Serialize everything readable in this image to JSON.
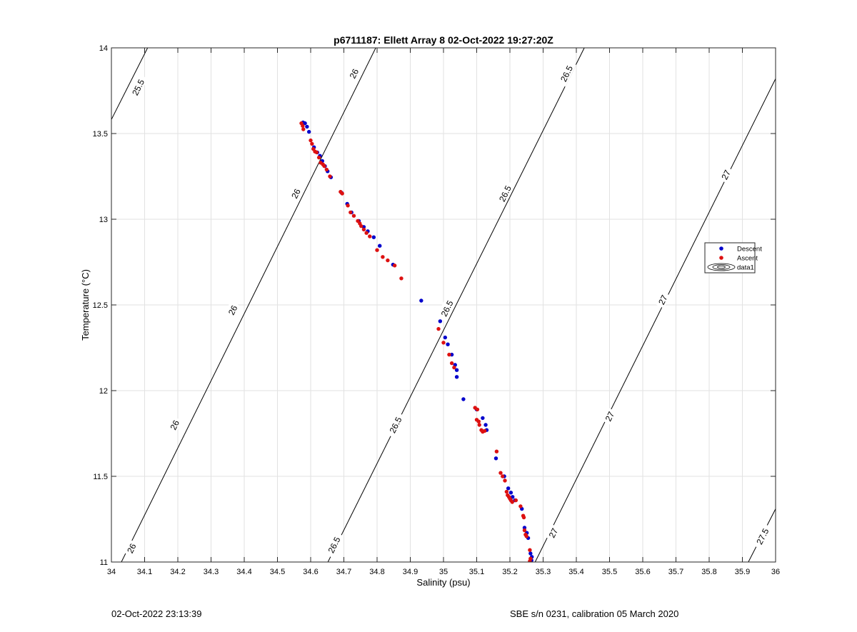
{
  "chart_data": {
    "type": "scatter",
    "title": "p6711187: Ellett Array 8 02-Oct-2022 19:27:20Z",
    "xlabel": "Salinity (psu)",
    "ylabel": "Temperature (°C)",
    "xlim": [
      34,
      36
    ],
    "ylim": [
      11,
      14
    ],
    "xticks": [
      34,
      34.1,
      34.2,
      34.3,
      34.4,
      34.5,
      34.6,
      34.7,
      34.8,
      34.9,
      35,
      35.1,
      35.2,
      35.3,
      35.4,
      35.5,
      35.6,
      35.7,
      35.8,
      35.9,
      36
    ],
    "xtick_labels": [
      "34",
      "34.1",
      "34.2",
      "34.3",
      "34.4",
      "34.5",
      "34.6",
      "34.7",
      "34.8",
      "34.9",
      "35",
      "35.1",
      "35.2",
      "35.3",
      "35.4",
      "35.5",
      "35.6",
      "35.7",
      "35.8",
      "35.9",
      "36"
    ],
    "yticks": [
      11,
      11.5,
      12,
      12.5,
      13,
      13.5,
      14
    ],
    "ytick_labels": [
      "11",
      "11.5",
      "12",
      "12.5",
      "13",
      "13.5",
      "14"
    ],
    "grid": true,
    "legend_position": "right",
    "legend": [
      "Descent",
      "Ascent",
      "data1"
    ],
    "colors": {
      "descent": "#0000cc",
      "ascent": "#dd1111",
      "contour": "#000000",
      "grid": "#e2e2e2",
      "axis": "#262626"
    },
    "series": [
      {
        "name": "Descent",
        "points": [
          [
            34.577,
            13.565
          ],
          [
            34.583,
            13.56
          ],
          [
            34.589,
            13.54
          ],
          [
            34.595,
            13.51
          ],
          [
            34.61,
            13.42
          ],
          [
            34.62,
            13.39
          ],
          [
            34.628,
            13.37
          ],
          [
            34.635,
            13.34
          ],
          [
            34.643,
            13.31
          ],
          [
            34.651,
            13.28
          ],
          [
            34.661,
            13.245
          ],
          [
            34.693,
            13.155
          ],
          [
            34.71,
            13.09
          ],
          [
            34.723,
            13.04
          ],
          [
            34.745,
            12.99
          ],
          [
            34.76,
            12.955
          ],
          [
            34.772,
            12.93
          ],
          [
            34.79,
            12.895
          ],
          [
            34.808,
            12.845
          ],
          [
            34.848,
            12.735
          ],
          [
            34.933,
            12.525
          ],
          [
            34.99,
            12.405
          ],
          [
            35.005,
            12.31
          ],
          [
            35.013,
            12.27
          ],
          [
            35.025,
            12.21
          ],
          [
            35.035,
            12.15
          ],
          [
            35.04,
            12.12
          ],
          [
            35.04,
            12.08
          ],
          [
            35.06,
            11.95
          ],
          [
            35.1,
            11.89
          ],
          [
            35.118,
            11.84
          ],
          [
            35.127,
            11.8
          ],
          [
            35.13,
            11.77
          ],
          [
            35.158,
            11.605
          ],
          [
            35.183,
            11.5
          ],
          [
            35.195,
            11.43
          ],
          [
            35.203,
            11.405
          ],
          [
            35.208,
            11.38
          ],
          [
            35.215,
            11.36
          ],
          [
            35.236,
            11.31
          ],
          [
            35.244,
            11.2
          ],
          [
            35.251,
            11.17
          ],
          [
            35.255,
            11.14
          ],
          [
            35.262,
            11.05
          ],
          [
            35.266,
            11.03
          ],
          [
            35.265,
            11.01
          ]
        ]
      },
      {
        "name": "Ascent",
        "points": [
          [
            34.572,
            13.56
          ],
          [
            34.576,
            13.545
          ],
          [
            34.578,
            13.525
          ],
          [
            34.6,
            13.46
          ],
          [
            34.604,
            13.44
          ],
          [
            34.608,
            13.41
          ],
          [
            34.613,
            13.395
          ],
          [
            34.618,
            13.39
          ],
          [
            34.625,
            13.36
          ],
          [
            34.63,
            13.33
          ],
          [
            34.637,
            13.32
          ],
          [
            34.641,
            13.31
          ],
          [
            34.648,
            13.29
          ],
          [
            34.658,
            13.25
          ],
          [
            34.69,
            13.16
          ],
          [
            34.695,
            13.15
          ],
          [
            34.712,
            13.08
          ],
          [
            34.72,
            13.04
          ],
          [
            34.73,
            13.02
          ],
          [
            34.742,
            12.99
          ],
          [
            34.748,
            12.975
          ],
          [
            34.752,
            12.96
          ],
          [
            34.76,
            12.94
          ],
          [
            34.768,
            12.92
          ],
          [
            34.778,
            12.9
          ],
          [
            34.8,
            12.82
          ],
          [
            34.817,
            12.78
          ],
          [
            34.832,
            12.76
          ],
          [
            34.853,
            12.73
          ],
          [
            34.873,
            12.655
          ],
          [
            34.985,
            12.36
          ],
          [
            35.0,
            12.28
          ],
          [
            35.017,
            12.21
          ],
          [
            35.025,
            12.16
          ],
          [
            35.032,
            12.135
          ],
          [
            35.095,
            11.9
          ],
          [
            35.102,
            11.89
          ],
          [
            35.1,
            11.83
          ],
          [
            35.106,
            11.82
          ],
          [
            35.108,
            11.8
          ],
          [
            35.114,
            11.77
          ],
          [
            35.118,
            11.76
          ],
          [
            35.124,
            11.765
          ],
          [
            35.16,
            11.645
          ],
          [
            35.172,
            11.52
          ],
          [
            35.178,
            11.5
          ],
          [
            35.185,
            11.475
          ],
          [
            35.19,
            11.41
          ],
          [
            35.193,
            11.39
          ],
          [
            35.197,
            11.38
          ],
          [
            35.2,
            11.37
          ],
          [
            35.203,
            11.36
          ],
          [
            35.207,
            11.35
          ],
          [
            35.218,
            11.36
          ],
          [
            35.232,
            11.325
          ],
          [
            35.24,
            11.27
          ],
          [
            35.242,
            11.26
          ],
          [
            35.244,
            11.185
          ],
          [
            35.247,
            11.16
          ],
          [
            35.25,
            11.15
          ],
          [
            35.26,
            11.07
          ],
          [
            35.262,
            11.02
          ],
          [
            35.26,
            11.005
          ]
        ]
      }
    ],
    "isopycnals": [
      {
        "value": 25.5,
        "points": [
          [
            34.0,
            13.582
          ],
          [
            34.109,
            14.0
          ]
        ]
      },
      {
        "value": 26,
        "points": [
          [
            34.03,
            11.0
          ],
          [
            34.796,
            14.0
          ]
        ]
      },
      {
        "value": 26.5,
        "points": [
          [
            34.652,
            11.0
          ],
          [
            35.424,
            14.0
          ]
        ]
      },
      {
        "value": 27,
        "points": [
          [
            35.276,
            11.0
          ],
          [
            36.0,
            13.82
          ]
        ]
      },
      {
        "value": 27.5,
        "points": [
          [
            35.918,
            11.0
          ],
          [
            36.0,
            11.31
          ]
        ]
      }
    ],
    "contour_labels": [
      {
        "text": "25.5",
        "at": [
          34.08,
          13.77
        ]
      },
      {
        "text": "26",
        "at": [
          34.06,
          11.08
        ]
      },
      {
        "text": "26",
        "at": [
          34.19,
          11.8
        ]
      },
      {
        "text": "26",
        "at": [
          34.365,
          12.47
        ]
      },
      {
        "text": "26",
        "at": [
          34.555,
          13.15
        ]
      },
      {
        "text": "26",
        "at": [
          34.73,
          13.85
        ]
      },
      {
        "text": "26.5",
        "at": [
          34.67,
          11.1
        ]
      },
      {
        "text": "26.5",
        "at": [
          34.855,
          11.8
        ]
      },
      {
        "text": "26.5",
        "at": [
          35.01,
          12.48
        ]
      },
      {
        "text": "26.5",
        "at": [
          35.185,
          13.15
        ]
      },
      {
        "text": "26.5",
        "at": [
          35.37,
          13.85
        ]
      },
      {
        "text": "27",
        "at": [
          35.33,
          11.17
        ]
      },
      {
        "text": "27",
        "at": [
          35.5,
          11.85
        ]
      },
      {
        "text": "27",
        "at": [
          35.66,
          12.53
        ]
      },
      {
        "text": "27",
        "at": [
          35.85,
          13.26
        ]
      },
      {
        "text": "27.5",
        "at": [
          35.96,
          11.15
        ]
      }
    ]
  },
  "footer": {
    "left": "02-Oct-2022 23:13:39",
    "right": "SBE s/n 0231, calibration 05 March 2020"
  }
}
